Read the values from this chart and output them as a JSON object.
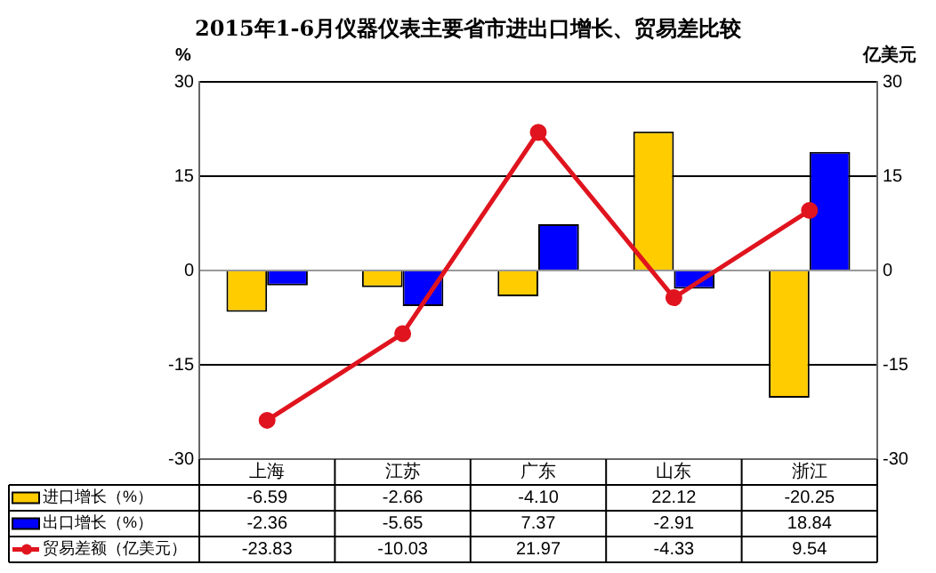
{
  "chart_data": {
    "type": "bar",
    "title": "2015年1-6月仪器仪表主要省市进出口增长、贸易差比较",
    "ylabel": "%",
    "y2label": "亿美元",
    "categories": [
      "上海",
      "江苏",
      "广东",
      "山东",
      "浙江"
    ],
    "series": [
      {
        "name": "进口增长（%）",
        "color": "#ffcc00",
        "values": [
          -6.59,
          -2.66,
          -4.1,
          22.12,
          -20.25
        ],
        "value_labels": [
          "-6.59",
          "-2.66",
          "-4.10",
          "22.12",
          "-20.25"
        ]
      },
      {
        "name": "出口增长（%）",
        "color": "#0000ff",
        "values": [
          -2.36,
          -5.65,
          7.37,
          -2.91,
          18.84
        ],
        "value_labels": [
          "-2.36",
          "-5.65",
          "7.37",
          "-2.91",
          "18.84"
        ]
      },
      {
        "name": "贸易差额（亿美元）",
        "type": "line",
        "axis": "y2",
        "color": "#e0141e",
        "values": [
          -23.83,
          -10.03,
          21.97,
          -4.33,
          9.54
        ],
        "value_labels": [
          "-23.83",
          "-10.03",
          "21.97",
          "-4.33",
          "9.54"
        ]
      }
    ],
    "ylim": [
      -30,
      30
    ],
    "yticks": [
      -30,
      -15,
      0,
      15,
      30
    ],
    "y2lim": [
      -30,
      30
    ],
    "y2ticks": [
      -30,
      -15,
      0,
      15,
      30
    ],
    "grid": "y",
    "legend": "bottom left",
    "marker": "circle",
    "line_style": "solid"
  }
}
